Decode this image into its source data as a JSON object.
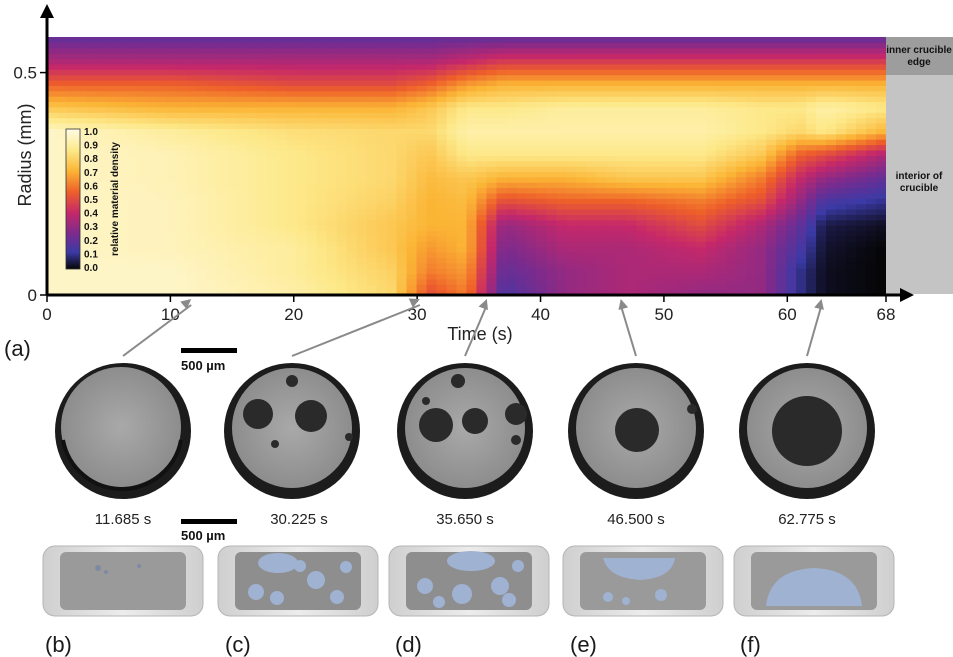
{
  "chart_data": {
    "type": "heatmap",
    "xlabel": "Time (s)",
    "ylabel": "Radius (mm)",
    "xlim": [
      0,
      68
    ],
    "ylim": [
      0,
      0.58
    ],
    "x_ticks": [
      "0",
      "10",
      "20",
      "30",
      "40",
      "50",
      "60",
      "68"
    ],
    "y_ticks": [
      "0",
      "0.5"
    ],
    "colorbar": {
      "label": "relative material density",
      "ticks": [
        "1.0",
        "0.9",
        "0.8",
        "0.7",
        "0.6",
        "0.5",
        "0.4",
        "0.3",
        "0.2",
        "0.1",
        "0.0"
      ],
      "colormap": "inferno-reversed",
      "range": [
        0,
        1
      ]
    },
    "region_labels": [
      "inner crucible edge",
      "interior of crucible"
    ],
    "columns": [
      {
        "t": 0,
        "profile": [
          0.95,
          0.95,
          0.95,
          0.95,
          0.95,
          0.95,
          0.95,
          0.95,
          0.75,
          0.55,
          0.35,
          0.2
        ]
      },
      {
        "t": 10,
        "profile": [
          0.95,
          0.95,
          0.93,
          0.93,
          0.93,
          0.92,
          0.92,
          0.88,
          0.7,
          0.55,
          0.35,
          0.2
        ]
      },
      {
        "t": 20,
        "profile": [
          0.9,
          0.88,
          0.88,
          0.85,
          0.85,
          0.85,
          0.85,
          0.82,
          0.7,
          0.5,
          0.35,
          0.2
        ]
      },
      {
        "t": 28,
        "profile": [
          0.8,
          0.78,
          0.75,
          0.75,
          0.78,
          0.8,
          0.8,
          0.8,
          0.7,
          0.5,
          0.35,
          0.2
        ]
      },
      {
        "t": 31,
        "profile": [
          0.5,
          0.6,
          0.65,
          0.7,
          0.7,
          0.72,
          0.75,
          0.8,
          0.75,
          0.55,
          0.35,
          0.2
        ]
      },
      {
        "t": 34,
        "profile": [
          0.6,
          0.65,
          0.7,
          0.7,
          0.72,
          0.75,
          0.85,
          0.9,
          0.85,
          0.65,
          0.4,
          0.2
        ]
      },
      {
        "t": 37,
        "profile": [
          0.15,
          0.2,
          0.25,
          0.3,
          0.5,
          0.7,
          0.85,
          0.9,
          0.85,
          0.7,
          0.45,
          0.2
        ]
      },
      {
        "t": 42,
        "profile": [
          0.3,
          0.3,
          0.35,
          0.4,
          0.55,
          0.7,
          0.85,
          0.9,
          0.88,
          0.7,
          0.45,
          0.2
        ]
      },
      {
        "t": 47,
        "profile": [
          0.35,
          0.35,
          0.35,
          0.4,
          0.55,
          0.75,
          0.85,
          0.9,
          0.88,
          0.7,
          0.45,
          0.2
        ]
      },
      {
        "t": 53,
        "profile": [
          0.3,
          0.35,
          0.4,
          0.5,
          0.6,
          0.75,
          0.85,
          0.9,
          0.88,
          0.7,
          0.45,
          0.2
        ]
      },
      {
        "t": 58,
        "profile": [
          0.3,
          0.3,
          0.3,
          0.35,
          0.5,
          0.6,
          0.75,
          0.85,
          0.85,
          0.7,
          0.45,
          0.2
        ]
      },
      {
        "t": 61,
        "profile": [
          0.1,
          0.1,
          0.15,
          0.2,
          0.3,
          0.4,
          0.55,
          0.8,
          0.85,
          0.7,
          0.45,
          0.2
        ]
      },
      {
        "t": 63,
        "profile": [
          0.02,
          0.02,
          0.03,
          0.05,
          0.15,
          0.3,
          0.5,
          0.85,
          0.9,
          0.7,
          0.45,
          0.2
        ]
      },
      {
        "t": 68,
        "profile": [
          0.0,
          0.0,
          0.0,
          0.02,
          0.1,
          0.2,
          0.35,
          0.7,
          0.85,
          0.7,
          0.45,
          0.2
        ]
      }
    ]
  },
  "figure": {
    "panel_a": "(a)",
    "scale_bar_top": "500 µm",
    "scale_bar_bottom": "500 µm",
    "snapshots": [
      {
        "time": "11.685 s",
        "t": 11.685,
        "letter": "(b)"
      },
      {
        "time": "30.225 s",
        "t": 30.225,
        "letter": "(c)"
      },
      {
        "time": "35.650 s",
        "t": 35.65,
        "letter": "(d)"
      },
      {
        "time": "46.500 s",
        "t": 46.5,
        "letter": "(e)"
      },
      {
        "time": "62.775 s",
        "t": 62.775,
        "letter": "(f)"
      }
    ]
  }
}
